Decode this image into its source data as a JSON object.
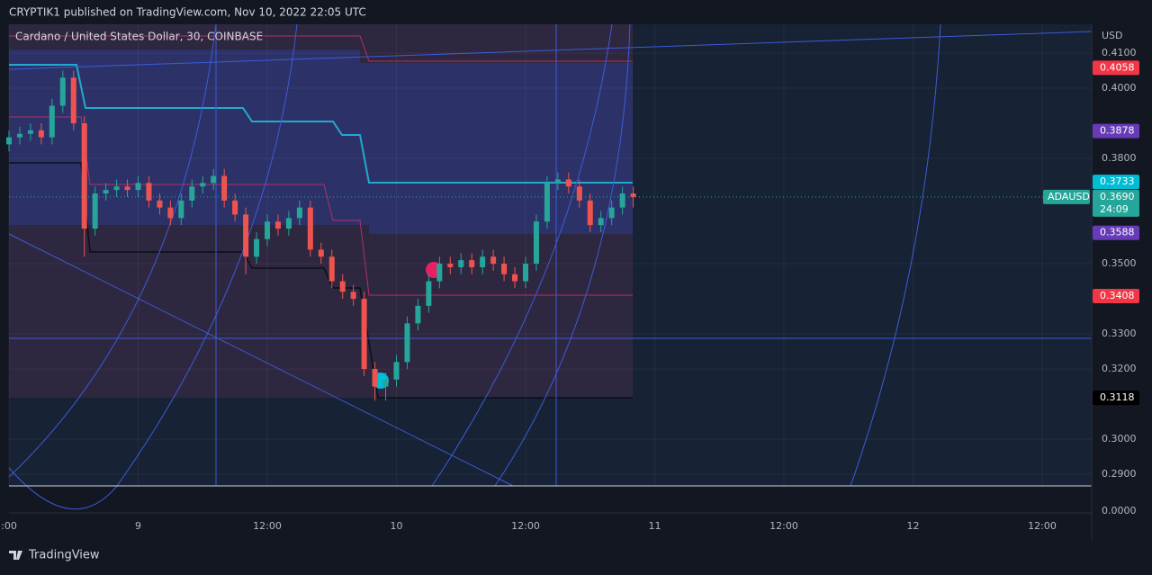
{
  "header": {
    "published": "CRYPTIK1 published on TradingView.com, Nov 10, 2022 22:05 UTC",
    "symbol_title": "Cardano / United States Dollar, 30, COINBASE",
    "footer_brand": "TradingView"
  },
  "chart_data": {
    "type": "candlestick",
    "currency": "USD",
    "x": [
      -12,
      -11,
      -10,
      -9,
      -8,
      -7,
      -6,
      -5,
      -4,
      -3,
      -2,
      -1,
      0,
      1,
      2,
      3,
      4,
      5,
      6,
      7,
      8,
      9,
      10,
      11,
      12,
      13,
      14,
      15,
      16,
      17,
      18,
      19,
      20,
      21,
      22,
      23,
      24,
      25,
      26,
      27,
      28,
      29,
      30,
      31,
      32,
      33,
      34,
      35,
      36,
      37,
      38,
      39,
      40,
      41,
      42,
      43,
      44,
      45,
      46
    ],
    "open": [
      0.384,
      0.386,
      0.387,
      0.388,
      0.386,
      0.395,
      0.403,
      0.39,
      0.36,
      0.37,
      0.371,
      0.372,
      0.371,
      0.373,
      0.368,
      0.366,
      0.363,
      0.368,
      0.372,
      0.373,
      0.375,
      0.368,
      0.364,
      0.352,
      0.357,
      0.362,
      0.36,
      0.363,
      0.366,
      0.354,
      0.352,
      0.345,
      0.342,
      0.34,
      0.32,
      0.315,
      0.317,
      0.322,
      0.333,
      0.338,
      0.345,
      0.35,
      0.349,
      0.351,
      0.349,
      0.352,
      0.35,
      0.347,
      0.345,
      0.35,
      0.362,
      0.373,
      0.374,
      0.372,
      0.368,
      0.361,
      0.363,
      0.366,
      0.37
    ],
    "high": [
      0.388,
      0.389,
      0.39,
      0.39,
      0.397,
      0.405,
      0.405,
      0.392,
      0.372,
      0.373,
      0.374,
      0.374,
      0.375,
      0.375,
      0.37,
      0.368,
      0.37,
      0.374,
      0.375,
      0.377,
      0.377,
      0.37,
      0.366,
      0.359,
      0.364,
      0.364,
      0.365,
      0.368,
      0.368,
      0.356,
      0.354,
      0.347,
      0.344,
      0.342,
      0.322,
      0.319,
      0.324,
      0.335,
      0.34,
      0.347,
      0.352,
      0.352,
      0.353,
      0.353,
      0.354,
      0.354,
      0.352,
      0.349,
      0.352,
      0.364,
      0.375,
      0.376,
      0.376,
      0.374,
      0.37,
      0.365,
      0.368,
      0.372,
      0.372
    ],
    "low": [
      0.382,
      0.384,
      0.385,
      0.384,
      0.384,
      0.393,
      0.388,
      0.352,
      0.358,
      0.368,
      0.369,
      0.369,
      0.369,
      0.366,
      0.364,
      0.361,
      0.361,
      0.366,
      0.37,
      0.371,
      0.366,
      0.362,
      0.347,
      0.35,
      0.355,
      0.358,
      0.358,
      0.361,
      0.352,
      0.35,
      0.343,
      0.34,
      0.338,
      0.318,
      0.311,
      0.311,
      0.315,
      0.32,
      0.331,
      0.336,
      0.343,
      0.347,
      0.347,
      0.347,
      0.347,
      0.348,
      0.345,
      0.343,
      0.343,
      0.348,
      0.36,
      0.371,
      0.37,
      0.366,
      0.359,
      0.359,
      0.361,
      0.364,
      0.366
    ],
    "close": [
      0.386,
      0.387,
      0.388,
      0.386,
      0.395,
      0.403,
      0.39,
      0.36,
      0.37,
      0.371,
      0.372,
      0.371,
      0.373,
      0.368,
      0.366,
      0.363,
      0.368,
      0.372,
      0.373,
      0.375,
      0.368,
      0.364,
      0.352,
      0.357,
      0.362,
      0.36,
      0.363,
      0.366,
      0.354,
      0.352,
      0.345,
      0.342,
      0.34,
      0.32,
      0.315,
      0.317,
      0.322,
      0.333,
      0.338,
      0.345,
      0.35,
      0.349,
      0.351,
      0.349,
      0.352,
      0.35,
      0.347,
      0.345,
      0.35,
      0.362,
      0.373,
      0.374,
      0.372,
      0.368,
      0.361,
      0.363,
      0.366,
      0.37,
      0.369
    ],
    "up_color": "#26a69a",
    "down_color": "#ef5350",
    "xlim": [
      -12,
      88.6
    ],
    "xticks": [
      {
        "value": -12,
        "label": ":00"
      },
      {
        "value": 0,
        "label": "9"
      },
      {
        "value": 12,
        "label": "12:00"
      },
      {
        "value": 24,
        "label": "10"
      },
      {
        "value": 36,
        "label": "12:00"
      },
      {
        "value": 48,
        "label": "11"
      },
      {
        "value": 60,
        "label": "12:00"
      },
      {
        "value": 72,
        "label": "12"
      },
      {
        "value": 84,
        "label": "12:00"
      }
    ],
    "ylim": [
      0.2867,
      0.4182
    ],
    "yticks": [
      {
        "value": 0.41,
        "label": "0.4100"
      },
      {
        "value": 0.4,
        "label": "0.4000"
      },
      {
        "value": 0.38,
        "label": "0.3800"
      },
      {
        "value": 0.35,
        "label": "0.3500"
      },
      {
        "value": 0.33,
        "label": "0.3300"
      },
      {
        "value": 0.32,
        "label": "0.3200"
      },
      {
        "value": 0.3,
        "label": "0.3000"
      },
      {
        "value": 0.29,
        "label": "0.2900"
      }
    ],
    "axis_bottom_label": "0.0000",
    "price_labels": [
      {
        "value": 0.4058,
        "label": "0.4058",
        "color": "#f23645"
      },
      {
        "value": 0.3878,
        "label": "0.3878",
        "color": "#673ab7"
      },
      {
        "value": 0.3733,
        "label": "0.3733",
        "color": "#00bcd4"
      },
      {
        "value": 0.3588,
        "label": "0.3588",
        "color": "#673ab7"
      },
      {
        "value": 0.3408,
        "label": "0.3408",
        "color": "#f23645"
      },
      {
        "value": 0.3118,
        "label": "0.3118",
        "color": "#000000"
      }
    ],
    "last_price": {
      "value": 0.369,
      "label": "0.3690",
      "symbol": "ADAUSD",
      "countdown": "24:09",
      "color": "#26a69a"
    }
  }
}
